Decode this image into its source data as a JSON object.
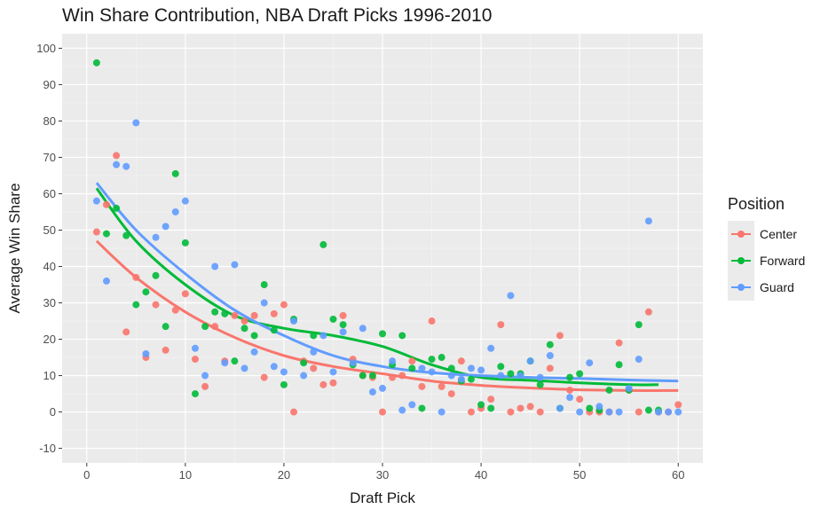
{
  "chart_data": {
    "type": "scatter",
    "title": "Win Share Contribution, NBA Draft Picks 1996-2010",
    "xlabel": "Draft Pick",
    "ylabel": "Average Win Share",
    "xlim": [
      -2.5,
      62.5
    ],
    "ylim": [
      -14,
      104
    ],
    "x_ticks": [
      0,
      10,
      20,
      30,
      40,
      50,
      60
    ],
    "y_ticks": [
      -10,
      0,
      10,
      20,
      30,
      40,
      50,
      60,
      70,
      80,
      90,
      100
    ],
    "grid": true,
    "legend": {
      "title": "Position",
      "position": "right"
    },
    "series": [
      {
        "name": "Center",
        "color": "#F8766D",
        "points": [
          [
            1,
            49.5
          ],
          [
            2,
            57
          ],
          [
            3,
            70.5
          ],
          [
            4,
            22
          ],
          [
            5,
            37
          ],
          [
            6,
            15
          ],
          [
            7,
            29.5
          ],
          [
            8,
            17
          ],
          [
            9,
            28
          ],
          [
            10,
            32.5
          ],
          [
            11,
            14.5
          ],
          [
            12,
            7
          ],
          [
            13,
            23.5
          ],
          [
            14,
            14
          ],
          [
            15,
            26.5
          ],
          [
            16,
            25
          ],
          [
            17,
            26.5
          ],
          [
            18,
            9.5
          ],
          [
            19,
            27
          ],
          [
            20,
            29.5
          ],
          [
            21,
            0
          ],
          [
            22,
            14
          ],
          [
            23,
            12
          ],
          [
            24,
            7.5
          ],
          [
            25,
            8
          ],
          [
            26,
            26.5
          ],
          [
            27,
            14.5
          ],
          [
            28,
            10
          ],
          [
            29,
            9.5
          ],
          [
            30,
            0
          ],
          [
            31,
            9.5
          ],
          [
            32,
            10
          ],
          [
            33,
            14
          ],
          [
            34,
            7
          ],
          [
            35,
            25
          ],
          [
            36,
            7
          ],
          [
            37,
            5
          ],
          [
            38,
            14
          ],
          [
            39,
            0
          ],
          [
            40,
            1
          ],
          [
            41,
            3.5
          ],
          [
            42,
            24
          ],
          [
            43,
            0
          ],
          [
            44,
            1
          ],
          [
            45,
            1.5
          ],
          [
            46,
            0
          ],
          [
            47,
            12
          ],
          [
            48,
            21
          ],
          [
            49,
            6
          ],
          [
            50,
            3.5
          ],
          [
            51,
            0
          ],
          [
            52,
            0
          ],
          [
            53,
            0
          ],
          [
            54,
            19
          ],
          [
            55,
            6
          ],
          [
            56,
            0
          ],
          [
            57,
            27.5
          ],
          [
            58,
            0
          ],
          [
            59,
            0
          ],
          [
            60,
            2
          ]
        ],
        "trend": [
          [
            1,
            47
          ],
          [
            5,
            37
          ],
          [
            10,
            27.5
          ],
          [
            15,
            20.5
          ],
          [
            20,
            15.5
          ],
          [
            25,
            12.5
          ],
          [
            30,
            10.5
          ],
          [
            35,
            8.5
          ],
          [
            40,
            7.3
          ],
          [
            45,
            6.6
          ],
          [
            50,
            6.1
          ],
          [
            55,
            5.9
          ],
          [
            60,
            5.9
          ]
        ]
      },
      {
        "name": "Forward",
        "color": "#00BA38",
        "points": [
          [
            1,
            96
          ],
          [
            2,
            49
          ],
          [
            3,
            56
          ],
          [
            4,
            48.5
          ],
          [
            5,
            29.5
          ],
          [
            6,
            33
          ],
          [
            7,
            37.5
          ],
          [
            8,
            23.5
          ],
          [
            9,
            65.5
          ],
          [
            10,
            46.5
          ],
          [
            11,
            5
          ],
          [
            12,
            23.5
          ],
          [
            13,
            27.5
          ],
          [
            14,
            27
          ],
          [
            15,
            14
          ],
          [
            16,
            23
          ],
          [
            17,
            21
          ],
          [
            18,
            35
          ],
          [
            19,
            22.5
          ],
          [
            20,
            7.5
          ],
          [
            21,
            25.5
          ],
          [
            22,
            13.5
          ],
          [
            23,
            21
          ],
          [
            24,
            46
          ],
          [
            25,
            25.5
          ],
          [
            26,
            24
          ],
          [
            27,
            13
          ],
          [
            28,
            10
          ],
          [
            29,
            10
          ],
          [
            30,
            21.5
          ],
          [
            31,
            13
          ],
          [
            32,
            21
          ],
          [
            33,
            12
          ],
          [
            34,
            1
          ],
          [
            35,
            14.5
          ],
          [
            36,
            15
          ],
          [
            37,
            12
          ],
          [
            38,
            8.5
          ],
          [
            39,
            9
          ],
          [
            40,
            2
          ],
          [
            41,
            1
          ],
          [
            42,
            12.5
          ],
          [
            43,
            10.5
          ],
          [
            44,
            10.5
          ],
          [
            45,
            14
          ],
          [
            46,
            7.5
          ],
          [
            47,
            18.5
          ],
          [
            48,
            1
          ],
          [
            49,
            9.5
          ],
          [
            50,
            10.5
          ],
          [
            51,
            1
          ],
          [
            52,
            0.5
          ],
          [
            53,
            6
          ],
          [
            54,
            13
          ],
          [
            55,
            6
          ],
          [
            56,
            24
          ],
          [
            57,
            0.5
          ],
          [
            58,
            0.5
          ]
        ],
        "trend": [
          [
            1,
            61.5
          ],
          [
            5,
            47
          ],
          [
            10,
            35
          ],
          [
            15,
            26.5
          ],
          [
            20,
            23
          ],
          [
            25,
            21
          ],
          [
            30,
            18
          ],
          [
            35,
            13
          ],
          [
            40,
            9.5
          ],
          [
            45,
            8.7
          ],
          [
            50,
            8
          ],
          [
            55,
            7.5
          ],
          [
            58,
            7.5
          ]
        ]
      },
      {
        "name": "Guard",
        "color": "#619CFF",
        "points": [
          [
            1,
            58
          ],
          [
            2,
            36
          ],
          [
            3,
            68
          ],
          [
            4,
            67.5
          ],
          [
            5,
            79.5
          ],
          [
            6,
            16
          ],
          [
            7,
            48
          ],
          [
            8,
            51
          ],
          [
            9,
            55
          ],
          [
            10,
            58
          ],
          [
            11,
            17.5
          ],
          [
            12,
            10
          ],
          [
            13,
            40
          ],
          [
            14,
            13.5
          ],
          [
            15,
            40.5
          ],
          [
            16,
            12
          ],
          [
            17,
            16.5
          ],
          [
            18,
            30
          ],
          [
            19,
            12.5
          ],
          [
            20,
            11
          ],
          [
            21,
            25
          ],
          [
            22,
            10
          ],
          [
            23,
            16.5
          ],
          [
            24,
            21
          ],
          [
            25,
            11
          ],
          [
            26,
            22
          ],
          [
            27,
            13.5
          ],
          [
            28,
            23
          ],
          [
            29,
            5.5
          ],
          [
            30,
            6.5
          ],
          [
            31,
            14
          ],
          [
            32,
            0.5
          ],
          [
            33,
            2
          ],
          [
            34,
            12
          ],
          [
            35,
            11
          ],
          [
            36,
            0
          ],
          [
            37,
            10
          ],
          [
            38,
            9
          ],
          [
            39,
            12
          ],
          [
            40,
            11.5
          ],
          [
            41,
            17.5
          ],
          [
            42,
            10
          ],
          [
            43,
            32
          ],
          [
            44,
            10
          ],
          [
            45,
            14
          ],
          [
            46,
            9.5
          ],
          [
            47,
            15.5
          ],
          [
            48,
            1
          ],
          [
            49,
            4
          ],
          [
            50,
            0
          ],
          [
            51,
            13.5
          ],
          [
            52,
            1.5
          ],
          [
            53,
            0
          ],
          [
            54,
            0
          ],
          [
            55,
            6.5
          ],
          [
            56,
            14.5
          ],
          [
            57,
            52.5
          ],
          [
            58,
            0
          ],
          [
            59,
            0
          ],
          [
            60,
            0
          ]
        ],
        "trend": [
          [
            1,
            63
          ],
          [
            5,
            50
          ],
          [
            10,
            38
          ],
          [
            15,
            28
          ],
          [
            20,
            21
          ],
          [
            25,
            15.5
          ],
          [
            30,
            12.5
          ],
          [
            35,
            10.8
          ],
          [
            40,
            10
          ],
          [
            45,
            9.5
          ],
          [
            50,
            9.2
          ],
          [
            55,
            8.8
          ],
          [
            60,
            8.5
          ]
        ]
      }
    ]
  }
}
